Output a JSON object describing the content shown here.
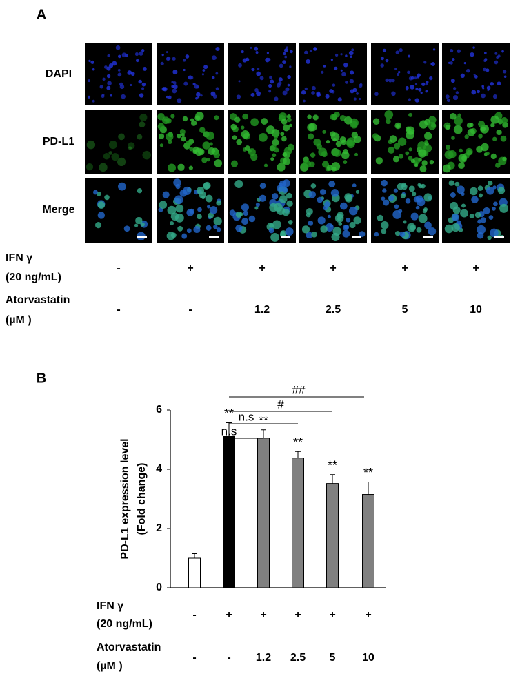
{
  "panel_a": {
    "label": "A",
    "row_labels": [
      "DAPI",
      "PD-L1",
      "Merge"
    ],
    "conditions": [
      {
        "label": "IFN γ",
        "sublabel": "(20 ng/mL)",
        "values": [
          "-",
          "+",
          "+",
          "+",
          "+",
          "+"
        ]
      },
      {
        "label": "Atorvastatin",
        "sublabel": "(µM )",
        "values": [
          "-",
          "-",
          "1.2",
          "2.5",
          "5",
          "10"
        ]
      }
    ]
  },
  "chart_data": {
    "type": "bar",
    "panel_label": "B",
    "y_label": "PD-L1 expression level",
    "y_label_2": "(Fold change)",
    "categories": [
      null,
      null,
      null,
      null,
      null,
      null
    ],
    "values": [
      1.0,
      5.12,
      5.05,
      4.38,
      3.52,
      3.15
    ],
    "errors": [
      0.15,
      0.45,
      0.28,
      0.22,
      0.3,
      0.42
    ],
    "colors": [
      "#ffffff",
      "#000000",
      "#808080",
      "#808080",
      "#808080",
      "#808080"
    ],
    "annotations": [
      null,
      "**",
      "**",
      "**",
      "**",
      "**"
    ],
    "comparisons": [
      {
        "from": 1,
        "to": 2,
        "label": "n.s"
      },
      {
        "from": 1,
        "to": 3,
        "label": "n.s"
      },
      {
        "from": 1,
        "to": 4,
        "label": "#"
      },
      {
        "from": 1,
        "to": 5,
        "label": "##"
      }
    ],
    "ylim": [
      0,
      6
    ],
    "yticks": [
      0,
      2,
      4,
      6
    ],
    "conditions": [
      {
        "label": "IFN γ",
        "sublabel": "(20 ng/mL)",
        "values": [
          "-",
          "+",
          "+",
          "+",
          "+",
          "+"
        ]
      },
      {
        "label": "Atorvastatin",
        "sublabel": "(µM )",
        "values": [
          "-",
          "-",
          "1.2",
          "2.5",
          "5",
          "10"
        ]
      }
    ]
  }
}
